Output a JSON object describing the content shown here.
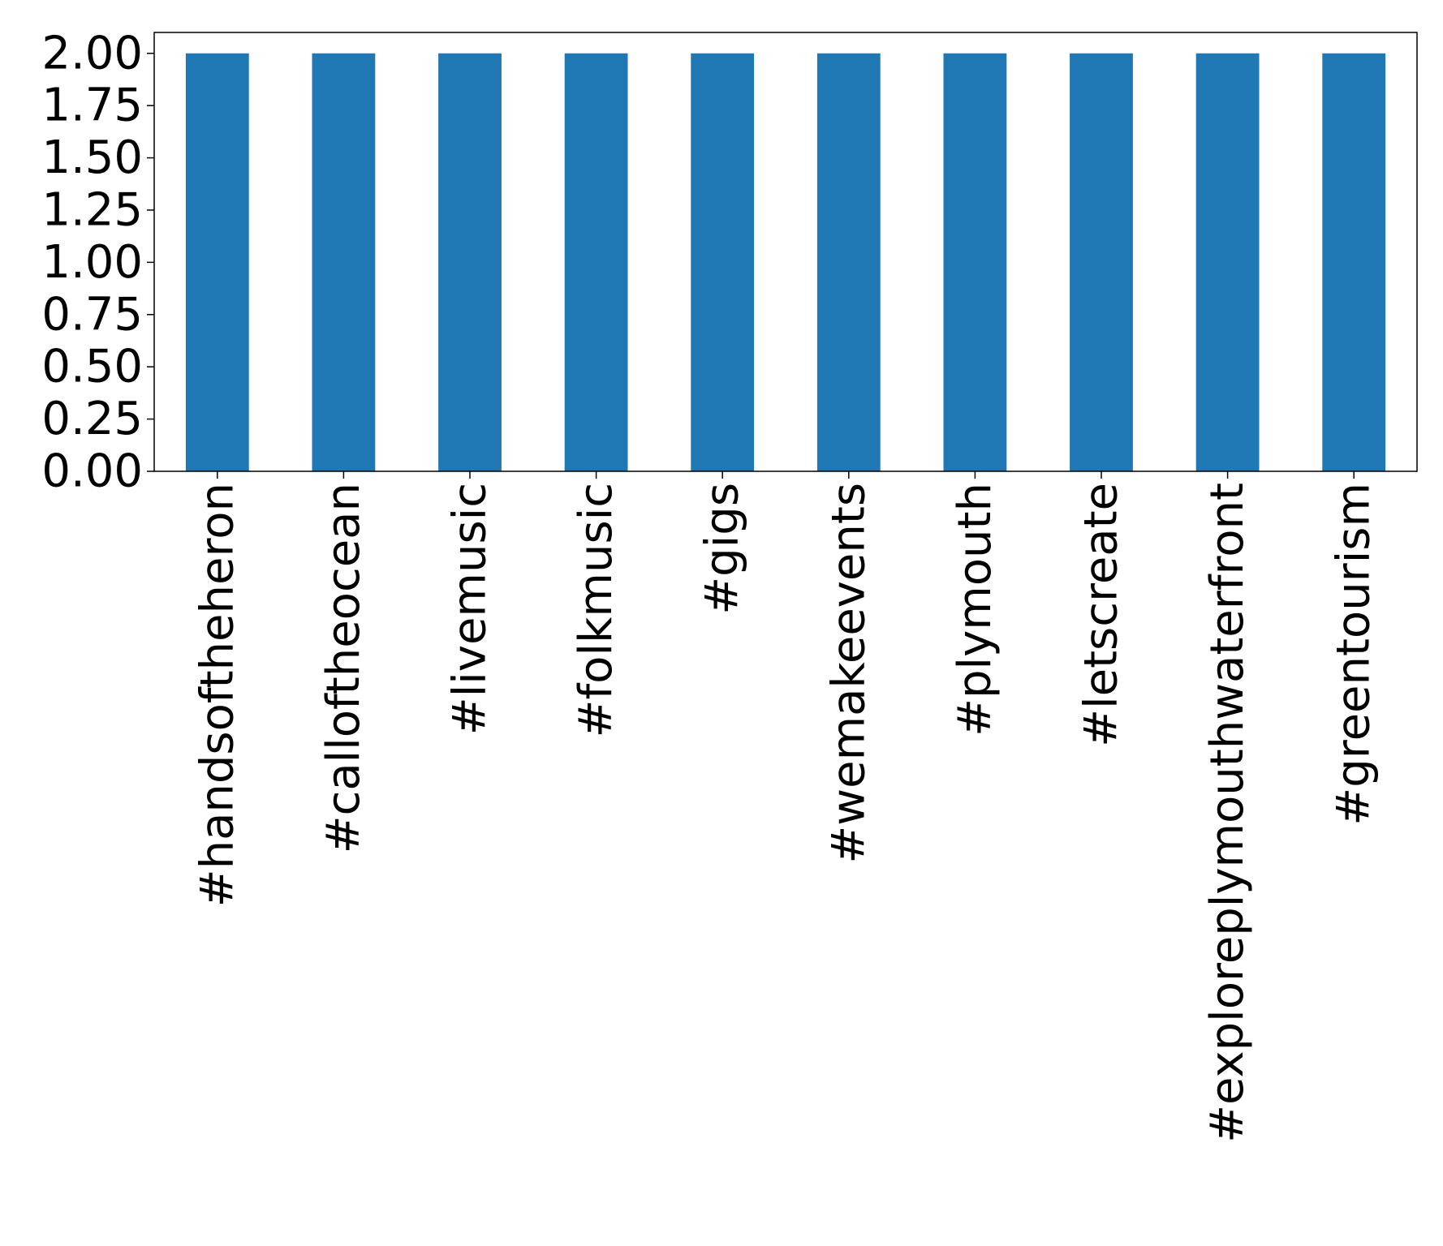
{
  "chart_data": {
    "type": "bar",
    "title": "",
    "xlabel": "",
    "ylabel": "",
    "categories": [
      "#handsoftheheron",
      "#calloftheocean",
      "#livemusic",
      "#folkmusic",
      "#gigs",
      "#wemakeevents",
      "#plymouth",
      "#letscreate",
      "#exploreplymouthwaterfront",
      "#greentourism"
    ],
    "values": [
      2,
      2,
      2,
      2,
      2,
      2,
      2,
      2,
      2,
      2
    ],
    "ylim": [
      0,
      2.1
    ],
    "yticks": [
      "0.00",
      "0.25",
      "0.50",
      "0.75",
      "1.00",
      "1.25",
      "1.50",
      "1.75",
      "2.00"
    ],
    "grid": false,
    "legend": "none",
    "bar_color": "#1f77b4"
  }
}
